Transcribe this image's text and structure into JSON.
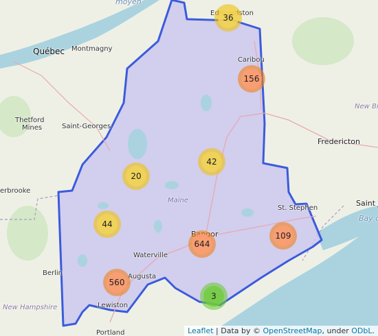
{
  "map": {
    "region_label": "Maine",
    "colors": {
      "boundary": "#3b5bdb",
      "boundary_fill": "#c9c5f0",
      "land": "#eef0e6",
      "water": "#aad3df",
      "forest": "#cfe5c0"
    }
  },
  "places": {
    "quebec": "Québec",
    "montmagny": "Montmagny",
    "thetford_mines_1": "Thetford",
    "thetford_mines_2": "Mines",
    "saint_georges": "Saint-Georges",
    "sherbrooke": "erbrooke",
    "caribou": "Caribou",
    "edmundston": "Edmundston",
    "fredericton": "Fredericton",
    "new_brunswick": "New Br",
    "st_stephen": "St. Stephen",
    "saint_john": "Saint J",
    "bay_of_fundy": "Bay o",
    "bangor": "Bangor",
    "waterville": "Waterville",
    "augusta": "Augusta",
    "lewiston": "Lewiston",
    "portland": "Portland",
    "berlin": "Berlin",
    "new_hampshire": "New Hampshire",
    "moyen": "moyen"
  },
  "clusters": [
    {
      "count": "36",
      "size": "medium"
    },
    {
      "count": "156",
      "size": "large"
    },
    {
      "count": "42",
      "size": "medium"
    },
    {
      "count": "20",
      "size": "medium"
    },
    {
      "count": "44",
      "size": "medium"
    },
    {
      "count": "644",
      "size": "large"
    },
    {
      "count": "109",
      "size": "large"
    },
    {
      "count": "560",
      "size": "large"
    },
    {
      "count": "3",
      "size": "small"
    }
  ],
  "attribution": {
    "leaflet": "Leaflet",
    "sep1": " | Data by © ",
    "osm": "OpenStreetMap",
    "sep2": ", under ",
    "odbl": "ODbL",
    "end": "."
  }
}
